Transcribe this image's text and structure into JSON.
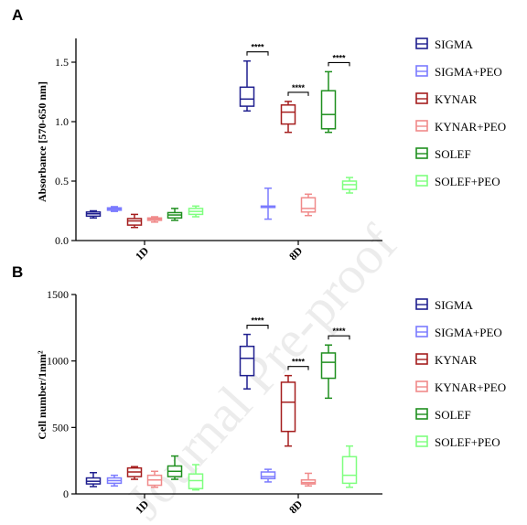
{
  "colors": {
    "SIGMA": "#1f1f8f",
    "SIGMA+PEO": "#7b7bff",
    "KYNAR": "#a51e1e",
    "KYNAR+PEO": "#f08a8a",
    "SOLEF": "#1f8f1f",
    "SOLEF+PEO": "#7fff7f"
  },
  "watermark": "Journal Pre-proof",
  "chart_data": [
    {
      "panel": "A",
      "type": "box",
      "ylabel": "Absorbance [570-650 nm]",
      "xlabel": "",
      "categories": [
        "1D",
        "8D"
      ],
      "ylim": [
        0,
        1.7
      ],
      "yticks": [
        "0.0",
        "0.5",
        "1.0",
        "1.5"
      ],
      "series": [
        {
          "name": "SIGMA",
          "boxes": [
            [
              0.19,
              0.205,
              0.225,
              0.24,
              0.25
            ],
            [
              1.09,
              1.13,
              1.19,
              1.29,
              1.51
            ]
          ]
        },
        {
          "name": "SIGMA+PEO",
          "boxes": [
            [
              0.245,
              0.255,
              0.265,
              0.275,
              0.285
            ],
            [
              0.18,
              0.28,
              0.285,
              0.29,
              0.44
            ]
          ]
        },
        {
          "name": "KYNAR",
          "boxes": [
            [
              0.11,
              0.13,
              0.165,
              0.185,
              0.22
            ],
            [
              0.91,
              0.98,
              1.08,
              1.14,
              1.17
            ]
          ]
        },
        {
          "name": "KYNAR+PEO",
          "boxes": [
            [
              0.155,
              0.17,
              0.18,
              0.19,
              0.2
            ],
            [
              0.21,
              0.24,
              0.27,
              0.36,
              0.39
            ]
          ]
        },
        {
          "name": "SOLEF",
          "boxes": [
            [
              0.17,
              0.19,
              0.215,
              0.235,
              0.27
            ],
            [
              0.91,
              0.94,
              1.06,
              1.26,
              1.42
            ]
          ]
        },
        {
          "name": "SOLEF+PEO",
          "boxes": [
            [
              0.2,
              0.22,
              0.245,
              0.27,
              0.29
            ],
            [
              0.4,
              0.43,
              0.47,
              0.5,
              0.53
            ]
          ]
        }
      ],
      "significance": [
        {
          "series": "SIGMA",
          "category": "8D",
          "label": "****"
        },
        {
          "series": "KYNAR",
          "category": "8D",
          "label": "****"
        },
        {
          "series": "SOLEF",
          "category": "8D",
          "label": "****"
        }
      ],
      "legend_position": "right"
    },
    {
      "panel": "B",
      "type": "box",
      "ylabel": "Cell number/1mm²",
      "xlabel": "",
      "categories": [
        "1D",
        "8D"
      ],
      "ylim": [
        0,
        1500
      ],
      "yticks": [
        "0",
        "500",
        "1000",
        "1500"
      ],
      "series": [
        {
          "name": "SIGMA",
          "boxes": [
            [
              55,
              75,
              95,
              120,
              160
            ],
            [
              790,
              890,
              1020,
              1110,
              1200
            ]
          ]
        },
        {
          "name": "SIGMA+PEO",
          "boxes": [
            [
              60,
              80,
              100,
              120,
              140
            ],
            [
              90,
              115,
              130,
              165,
              185
            ]
          ]
        },
        {
          "name": "KYNAR",
          "boxes": [
            [
              110,
              130,
              165,
              195,
              205
            ],
            [
              360,
              470,
              690,
              840,
              890
            ]
          ]
        },
        {
          "name": "KYNAR+PEO",
          "boxes": [
            [
              50,
              65,
              105,
              140,
              170
            ],
            [
              60,
              75,
              85,
              105,
              155
            ]
          ]
        },
        {
          "name": "SOLEF",
          "boxes": [
            [
              110,
              130,
              170,
              210,
              285
            ],
            [
              720,
              870,
              990,
              1060,
              1120
            ]
          ]
        },
        {
          "name": "SOLEF+PEO",
          "boxes": [
            [
              30,
              40,
              100,
              150,
              220
            ],
            [
              50,
              80,
              140,
              280,
              360
            ]
          ]
        }
      ],
      "significance": [
        {
          "series": "SIGMA",
          "category": "8D",
          "label": "****"
        },
        {
          "series": "KYNAR",
          "category": "8D",
          "label": "****"
        },
        {
          "series": "SOLEF",
          "category": "8D",
          "label": "****"
        }
      ],
      "legend_position": "right"
    }
  ]
}
